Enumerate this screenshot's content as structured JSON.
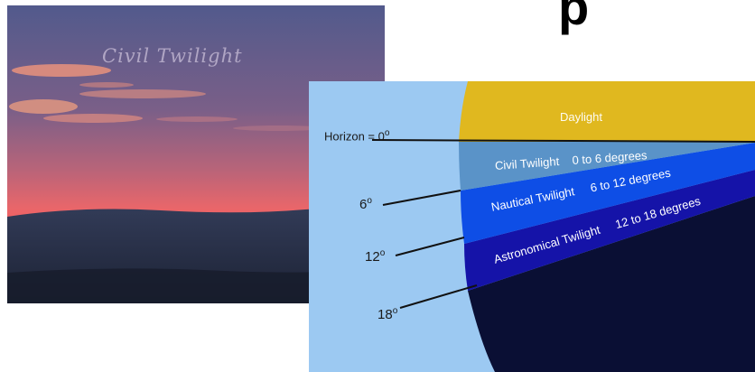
{
  "header": {
    "fragment": "p"
  },
  "photo": {
    "caption": "Civil Twilight",
    "colors": {
      "sky_top": "#585f8f",
      "glow": "#f25a5e",
      "land": "#2c3550"
    }
  },
  "diagram": {
    "bands": [
      {
        "label": "Daylight",
        "range": "",
        "color": "#e0b81f"
      },
      {
        "label": "Civil Twilight",
        "range": "0 to 6 degrees",
        "color": "#5a93c8"
      },
      {
        "label": "Nautical Twilight",
        "range": "6 to 12 degrees",
        "color": "#0e4ee6"
      },
      {
        "label": "Astronomical Twilight",
        "range": "12 to 18 degrees",
        "color": "#1513a8"
      }
    ],
    "night_color": "#0a0f34",
    "earth_color": "#9cc9f2",
    "horizon_label": "Horizon = 0",
    "degree_marks": [
      {
        "label": "6",
        "unit": "o"
      },
      {
        "label": "12",
        "unit": "o"
      },
      {
        "label": "18",
        "unit": "o"
      }
    ],
    "horizon_unit": "o"
  }
}
